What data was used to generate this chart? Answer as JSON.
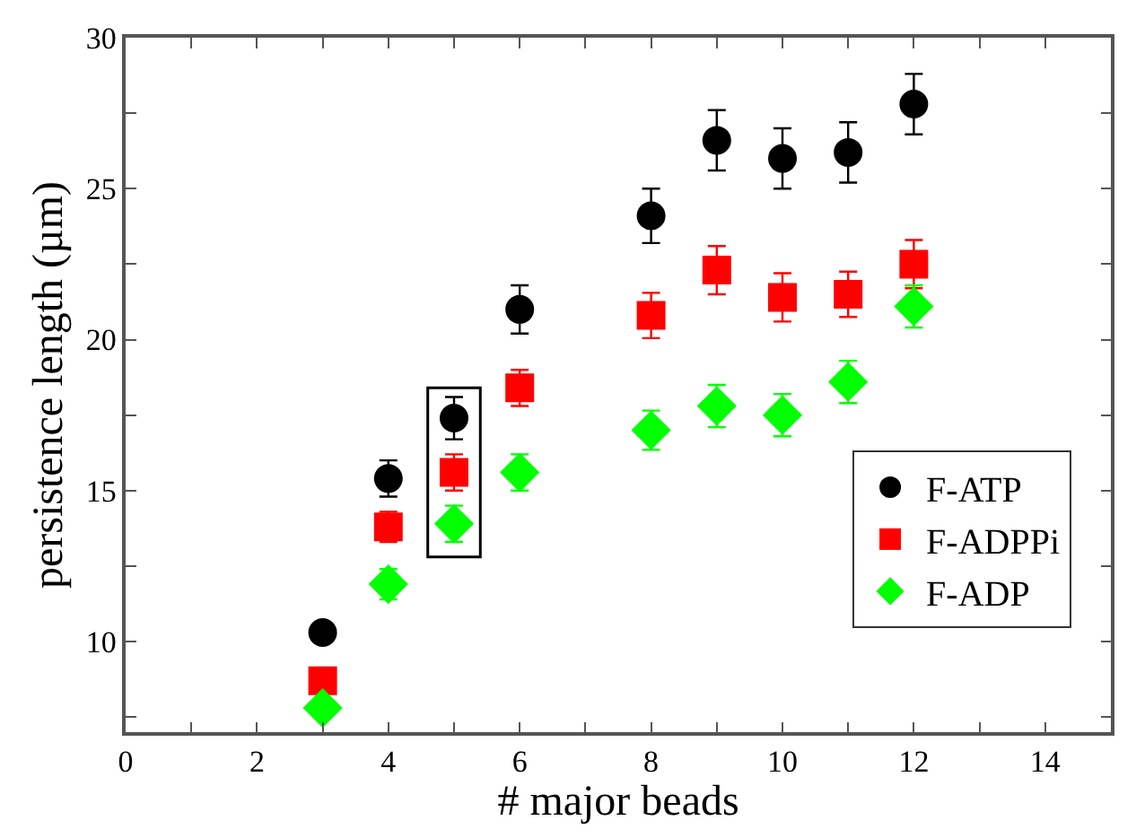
{
  "chart_data": {
    "type": "scatter",
    "xlabel": "# major beads",
    "ylabel": "persistence length (µm)",
    "xlim": [
      0,
      15
    ],
    "ylim": [
      7,
      30
    ],
    "xticks": [
      0,
      {
        "value": 1,
        "label": null
      },
      2,
      {
        "value": 3,
        "label": null
      },
      4,
      {
        "value": 5,
        "label": null
      },
      6,
      {
        "value": 7,
        "label": null
      },
      8,
      {
        "value": 9,
        "label": null
      },
      10,
      {
        "value": 11,
        "label": null
      },
      12,
      {
        "value": 13,
        "label": null
      },
      14
    ],
    "yticks": [
      {
        "value": 7.5,
        "label": null
      },
      10,
      {
        "value": 12.5,
        "label": null
      },
      15,
      {
        "value": 17.5,
        "label": null
      },
      20,
      {
        "value": 22.5,
        "label": null
      },
      25,
      {
        "value": 27.5,
        "label": null
      },
      30
    ],
    "legend": "bottom right",
    "x": [
      3,
      4,
      5,
      6,
      8,
      9,
      10,
      11,
      12
    ],
    "series": [
      {
        "name": "F-ATP",
        "color": "#000000",
        "marker": "circle",
        "values": [
          10.3,
          15.4,
          17.4,
          21.0,
          24.1,
          26.6,
          26.0,
          26.2,
          27.8
        ],
        "errors": [
          null,
          0.6,
          0.7,
          0.8,
          0.9,
          1.0,
          1.0,
          1.0,
          1.0
        ]
      },
      {
        "name": "F-ADPPi",
        "color": "#ff0000",
        "marker": "square",
        "values": [
          8.7,
          13.8,
          15.6,
          18.4,
          20.8,
          22.3,
          21.4,
          21.5,
          22.5
        ],
        "errors": [
          null,
          0.5,
          0.6,
          0.6,
          0.75,
          0.8,
          0.8,
          0.75,
          0.8
        ]
      },
      {
        "name": "F-ADP",
        "color": "#00ff00",
        "marker": "diamond",
        "values": [
          7.8,
          11.9,
          13.9,
          15.6,
          17.0,
          17.8,
          17.5,
          18.6,
          21.1
        ],
        "errors": [
          null,
          0.5,
          0.6,
          0.6,
          0.65,
          0.7,
          0.7,
          0.7,
          0.7
        ]
      }
    ]
  }
}
